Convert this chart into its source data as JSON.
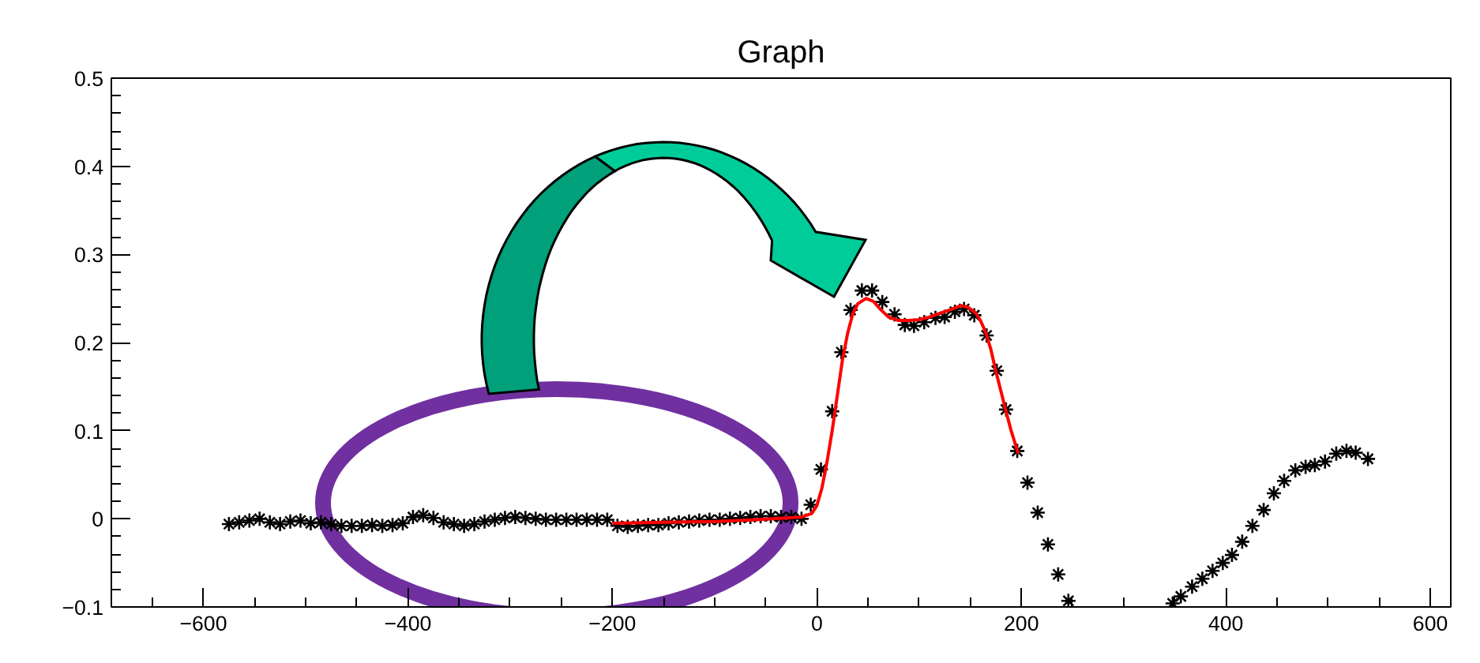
{
  "chart_data": {
    "type": "scatter",
    "title": "Graph",
    "xlim": [
      -690,
      620
    ],
    "ylim": [
      -0.1,
      0.5
    ],
    "xticks": [
      -600,
      -400,
      -200,
      0,
      200,
      400,
      600
    ],
    "yticks": [
      -0.1,
      0,
      0.1,
      0.2,
      0.3,
      0.4,
      0.5
    ],
    "grid": false,
    "marker": "cross",
    "series": [
      {
        "color": "#000000",
        "x": [
          -575,
          -565,
          -555,
          -545,
          -535,
          -525,
          -515,
          -505,
          -495,
          -485,
          -475,
          -465,
          -455,
          -445,
          -435,
          -425,
          -415,
          -405,
          -395,
          -385,
          -375,
          -365,
          -355,
          -345,
          -335,
          -325,
          -315,
          -305,
          -295,
          -285,
          -275,
          -265,
          -255,
          -245,
          -235,
          -225,
          -215,
          -205,
          -195,
          -185,
          -175,
          -165,
          -155,
          -145,
          -135,
          -125,
          -115,
          -105,
          -95,
          -85,
          -75,
          -65,
          -55,
          -45,
          -35,
          -25,
          -15,
          -6,
          4,
          15,
          24,
          33,
          44,
          54,
          64,
          76,
          86,
          95,
          105,
          116,
          125,
          135,
          144,
          154,
          166,
          176,
          185,
          196,
          206,
          216,
          226,
          236,
          246,
          348,
          356,
          367,
          377,
          387,
          397,
          406,
          416,
          426,
          437,
          447,
          457,
          468,
          478,
          487,
          497,
          508,
          518,
          527,
          539
        ],
        "values": [
          -0.006,
          -0.004,
          -0.002,
          0.0,
          -0.004,
          -0.006,
          -0.003,
          -0.002,
          -0.005,
          -0.004,
          -0.006,
          -0.008,
          -0.008,
          -0.008,
          -0.007,
          -0.008,
          -0.007,
          -0.005,
          0.002,
          0.004,
          0.001,
          -0.004,
          -0.006,
          -0.008,
          -0.006,
          -0.003,
          -0.001,
          0.001,
          0.002,
          0.001,
          0.0,
          -0.001,
          -0.001,
          -0.001,
          -0.001,
          -0.001,
          -0.001,
          -0.001,
          -0.008,
          -0.009,
          -0.008,
          -0.007,
          -0.007,
          -0.005,
          -0.004,
          -0.003,
          -0.002,
          -0.001,
          -0.001,
          0.0,
          0.001,
          0.002,
          0.003,
          0.003,
          0.002,
          0.002,
          0.0,
          0.016,
          0.056,
          0.122,
          0.189,
          0.237,
          0.259,
          0.259,
          0.246,
          0.232,
          0.22,
          0.219,
          0.223,
          0.228,
          0.229,
          0.235,
          0.238,
          0.231,
          0.208,
          0.168,
          0.124,
          0.077,
          0.041,
          0.007,
          -0.029,
          -0.063,
          -0.093,
          -0.096,
          -0.088,
          -0.077,
          -0.068,
          -0.059,
          -0.05,
          -0.041,
          -0.026,
          -0.008,
          0.01,
          0.029,
          0.043,
          0.055,
          0.059,
          0.061,
          0.065,
          0.074,
          0.077,
          0.075,
          0.068
        ]
      },
      {
        "type": "line",
        "color": "#ff0000",
        "marker": "none",
        "x": [
          -200,
          -150,
          -100,
          -60,
          -30,
          -15,
          -5,
          0,
          5,
          10,
          15,
          20,
          25,
          30,
          35,
          40,
          48,
          55,
          62,
          70,
          80,
          90,
          100,
          110,
          120,
          130,
          141,
          148,
          155,
          160,
          165,
          170,
          175,
          180,
          185,
          190,
          197
        ],
        "values": [
          -0.005,
          -0.004,
          -0.003,
          -0.001,
          0.001,
          0.002,
          0.006,
          0.015,
          0.035,
          0.065,
          0.1,
          0.14,
          0.18,
          0.21,
          0.232,
          0.244,
          0.25,
          0.247,
          0.238,
          0.229,
          0.225,
          0.225,
          0.226,
          0.229,
          0.233,
          0.237,
          0.242,
          0.24,
          0.234,
          0.225,
          0.212,
          0.193,
          0.168,
          0.145,
          0.122,
          0.1,
          0.074
        ]
      }
    ]
  }
}
